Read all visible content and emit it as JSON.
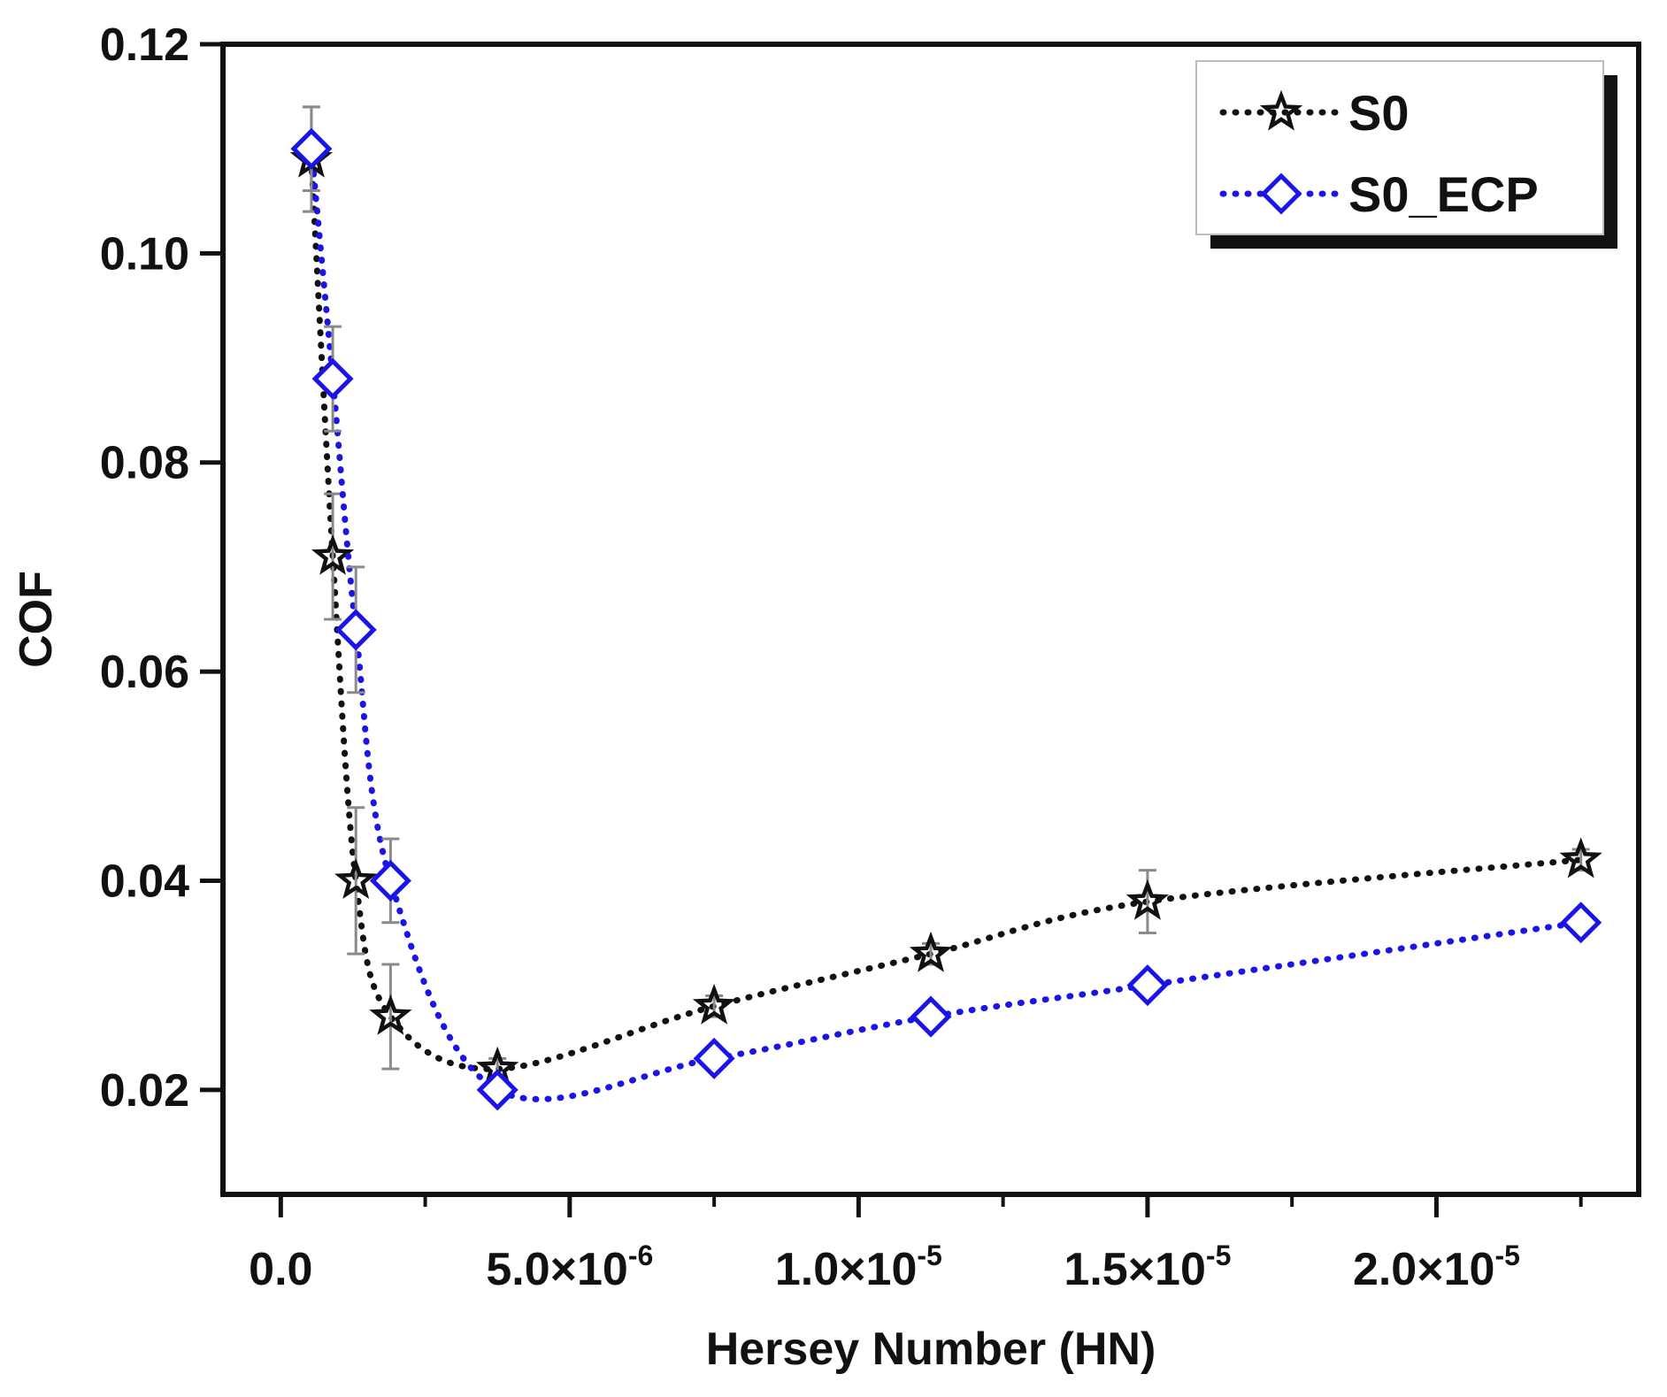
{
  "chart_data": {
    "type": "line",
    "title": "",
    "xlabel": "Hersey Number (HN)",
    "ylabel": "COF",
    "xlim": [
      -1e-06,
      2.35e-05
    ],
    "ylim": [
      0.01,
      0.12
    ],
    "x_ticks": [
      {
        "value": 0,
        "mantissa": "0.0",
        "exp": ""
      },
      {
        "value": 5e-06,
        "mantissa": "5.0×10",
        "exp": "-6"
      },
      {
        "value": 1e-05,
        "mantissa": "1.0×10",
        "exp": "-5"
      },
      {
        "value": 1.5e-05,
        "mantissa": "1.5×10",
        "exp": "-5"
      },
      {
        "value": 2e-05,
        "mantissa": "2.0×10",
        "exp": "-5"
      }
    ],
    "y_ticks": [
      {
        "value": 0.02,
        "label": "0.02"
      },
      {
        "value": 0.04,
        "label": "0.04"
      },
      {
        "value": 0.06,
        "label": "0.06"
      },
      {
        "value": 0.08,
        "label": "0.08"
      },
      {
        "value": 0.1,
        "label": "0.10"
      },
      {
        "value": 0.12,
        "label": "0.12"
      }
    ],
    "grid": false,
    "legend_position": "top-right",
    "series": [
      {
        "name": "S0",
        "color": "#111111",
        "marker": "star",
        "line_style": "dotted",
        "x": [
          5.3e-07,
          9e-07,
          1.3e-06,
          1.9e-06,
          3.75e-06,
          7.5e-06,
          1.125e-05,
          1.5e-05,
          2.25e-05
        ],
        "y": [
          0.109,
          0.071,
          0.04,
          0.027,
          0.022,
          0.028,
          0.033,
          0.038,
          0.042
        ],
        "err": [
          0.005,
          0.006,
          0.007,
          0.005,
          0.001,
          0.001,
          0.001,
          0.003,
          0.001
        ]
      },
      {
        "name": "S0_ECP",
        "color": "#1a14e6",
        "marker": "diamond",
        "line_style": "dotted",
        "x": [
          5.3e-07,
          9e-07,
          1.3e-06,
          1.9e-06,
          3.75e-06,
          7.5e-06,
          1.125e-05,
          1.5e-05,
          2.25e-05
        ],
        "y": [
          0.11,
          0.088,
          0.064,
          0.04,
          0.02,
          0.023,
          0.027,
          0.03,
          0.036
        ],
        "err": [
          0.004,
          0.005,
          0.006,
          0.004,
          0.001,
          0.001,
          0.001,
          0.001,
          0.001
        ]
      }
    ]
  }
}
